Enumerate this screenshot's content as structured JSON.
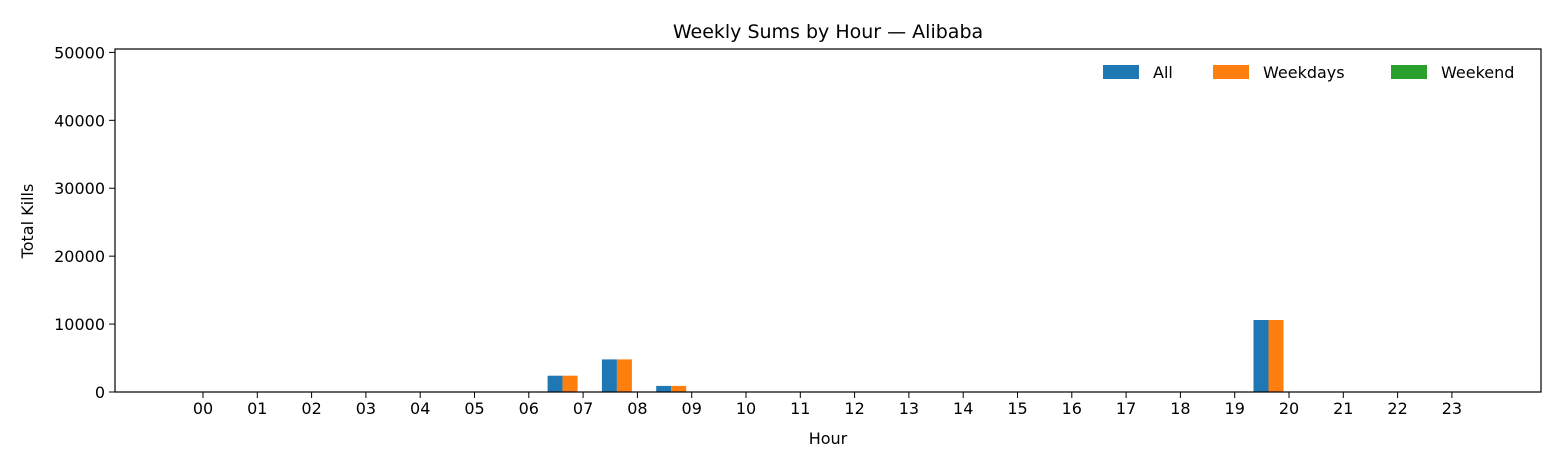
{
  "chart_data": {
    "type": "bar",
    "title": "Weekly Sums by Hour — Alibaba",
    "xlabel": "Hour",
    "ylabel": "Total Kills",
    "categories": [
      "00",
      "01",
      "02",
      "03",
      "04",
      "05",
      "06",
      "07",
      "08",
      "09",
      "10",
      "11",
      "12",
      "13",
      "14",
      "15",
      "16",
      "17",
      "18",
      "19",
      "20",
      "21",
      "22",
      "23"
    ],
    "yticks": [
      "0",
      "10000",
      "20000",
      "30000",
      "40000",
      "50000"
    ],
    "ylim": [
      0,
      50500
    ],
    "grid": false,
    "legend_position": "top-right",
    "series": [
      {
        "name": "All",
        "color": "#1f77b4",
        "values": [
          0,
          0,
          0,
          0,
          0,
          0,
          0,
          2400,
          4800,
          900,
          0,
          0,
          0,
          0,
          0,
          0,
          0,
          0,
          0,
          0,
          10600,
          0,
          0,
          0
        ]
      },
      {
        "name": "Weekdays",
        "color": "#ff7f0e",
        "values": [
          0,
          0,
          0,
          0,
          0,
          0,
          0,
          2400,
          4800,
          900,
          0,
          0,
          0,
          0,
          0,
          0,
          0,
          0,
          0,
          0,
          10600,
          0,
          0,
          0
        ]
      },
      {
        "name": "Weekend",
        "color": "#2ca02c",
        "values": [
          0,
          0,
          0,
          0,
          0,
          0,
          0,
          0,
          0,
          0,
          0,
          0,
          0,
          0,
          0,
          0,
          0,
          0,
          0,
          0,
          0,
          0,
          0,
          0
        ]
      }
    ]
  }
}
